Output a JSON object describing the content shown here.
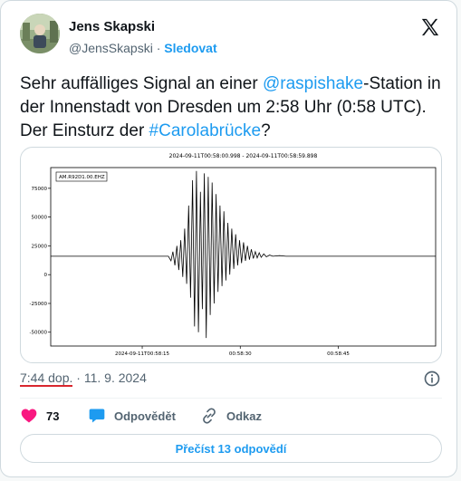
{
  "user": {
    "name": "Jens Skapski",
    "handle": "@JensSkapski",
    "separator": "·",
    "follow_label": "Sledovat"
  },
  "tweet": {
    "text_1": "Sehr auffälliges Signal an einer ",
    "mention": "@raspishake",
    "text_2": "-Station in der Innenstadt von Dresden um 2:58 Uhr (0:58 UTC). Der Einsturz der ",
    "hashtag": "#Carolabrücke",
    "text_3": "?"
  },
  "meta": {
    "time": "7:44 dop.",
    "separator": "·",
    "date": "11. 9. 2024"
  },
  "actions": {
    "likes_count": "73",
    "reply_label": "Odpovědět",
    "copy_link_label": "Odkaz"
  },
  "read_replies_label": "Přečíst 13 odpovědí",
  "colors": {
    "accent": "#1d9bf0",
    "like": "#f91880",
    "muted_text": "#536471",
    "border": "#cfd9de"
  },
  "icons": {
    "x_logo": "x-logo-icon",
    "info": "info-icon",
    "like": "heart-icon",
    "reply": "speech-bubble-icon",
    "link": "chain-link-icon"
  },
  "chart_data": {
    "type": "line",
    "title": "2024-09-11T00:58:00.998  -  2024-09-11T00:58:59.898",
    "station_label": "AM.R92D1.00.EHZ",
    "xlabel": "",
    "ylabel": "",
    "x_ticks": [
      {
        "value": 15,
        "label": "2024-09-11T00:58:15"
      },
      {
        "value": 30,
        "label": "00:58:30"
      },
      {
        "value": 45,
        "label": "00:58:45"
      }
    ],
    "xlim": [
      0.998,
      59.898
    ],
    "y_ticks": [
      75000,
      50000,
      25000,
      0,
      -25000,
      -50000
    ],
    "y_tick_labels": [
      "75000",
      "50000",
      "25000",
      "0",
      "-25000",
      "-50000"
    ],
    "ylim": [
      -62000,
      93000
    ],
    "baseline": 16000,
    "grid": false,
    "legend": "none",
    "series": [
      {
        "color": "#000000",
        "x": [
          0.998,
          10,
          14,
          17,
          19,
          19.4,
          19.7,
          20.0,
          20.3,
          20.6,
          20.9,
          21.2,
          21.5,
          21.8,
          22.1,
          22.4,
          22.7,
          23.0,
          23.3,
          23.6,
          23.9,
          24.2,
          24.5,
          24.8,
          25.1,
          25.4,
          25.7,
          26.0,
          26.3,
          26.6,
          26.9,
          27.2,
          27.5,
          27.8,
          28.1,
          28.4,
          28.7,
          29.0,
          29.3,
          29.6,
          29.9,
          30.2,
          30.5,
          30.8,
          31.1,
          31.4,
          31.7,
          32.0,
          32.3,
          32.6,
          32.9,
          33.2,
          33.6,
          34.0,
          34.5,
          35.0,
          36.0,
          37.0,
          38.0,
          40.0,
          45.0,
          50.0,
          55.0,
          59.898
        ],
        "y": [
          16000,
          16000,
          16000,
          16000,
          16000,
          12000,
          20000,
          8000,
          25000,
          4000,
          30000,
          -2000,
          40000,
          -8000,
          60000,
          -20000,
          82000,
          -45000,
          90000,
          -50000,
          72000,
          -30000,
          88000,
          -55000,
          85000,
          -35000,
          80000,
          -25000,
          70000,
          -15000,
          60000,
          -10000,
          55000,
          -5000,
          45000,
          0,
          40000,
          5000,
          35000,
          8000,
          30000,
          10000,
          28000,
          12000,
          25000,
          13000,
          22000,
          14000,
          20000,
          14500,
          19000,
          15000,
          18000,
          15500,
          17000,
          16000,
          16500,
          16000,
          16000,
          16000,
          16000,
          16000,
          16000,
          16000
        ]
      }
    ]
  }
}
